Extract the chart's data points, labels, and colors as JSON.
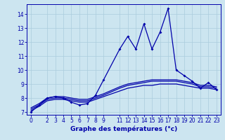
{
  "xlabel": "Graphe des températures (°c)",
  "bg_color": "#cce5f0",
  "grid_color": "#aaccdd",
  "line_color": "#0000aa",
  "xlim": [
    -0.5,
    23.5
  ],
  "ylim": [
    6.8,
    14.7
  ],
  "xticks": [
    0,
    2,
    3,
    4,
    5,
    6,
    7,
    8,
    9,
    11,
    12,
    13,
    14,
    15,
    16,
    17,
    18,
    19,
    20,
    21,
    22,
    23
  ],
  "yticks": [
    7,
    8,
    9,
    10,
    11,
    12,
    13,
    14
  ],
  "lines": [
    {
      "x": [
        0,
        1,
        2,
        3,
        4,
        5,
        6,
        7,
        8,
        9,
        11,
        12,
        13,
        14,
        15,
        16,
        17,
        18,
        19,
        20,
        21,
        22,
        23
      ],
      "y": [
        7.0,
        7.5,
        8.0,
        8.1,
        8.0,
        7.7,
        7.5,
        7.6,
        8.2,
        9.3,
        11.5,
        12.4,
        11.5,
        13.3,
        11.5,
        12.7,
        14.4,
        10.0,
        9.6,
        9.2,
        8.7,
        9.1,
        8.6
      ],
      "marker": true
    },
    {
      "x": [
        0,
        1,
        2,
        3,
        4,
        5,
        6,
        7,
        8,
        9,
        11,
        12,
        13,
        14,
        15,
        16,
        17,
        18,
        19,
        20,
        21,
        22,
        23
      ],
      "y": [
        7.1,
        7.4,
        7.8,
        7.9,
        7.9,
        7.8,
        7.7,
        7.7,
        7.9,
        8.1,
        8.5,
        8.7,
        8.8,
        8.9,
        8.9,
        9.0,
        9.0,
        9.0,
        8.9,
        8.8,
        8.7,
        8.7,
        8.6
      ],
      "marker": false
    },
    {
      "x": [
        0,
        1,
        2,
        3,
        4,
        5,
        6,
        7,
        8,
        9,
        11,
        12,
        13,
        14,
        15,
        16,
        17,
        18,
        19,
        20,
        21,
        22,
        23
      ],
      "y": [
        7.2,
        7.5,
        7.9,
        8.0,
        8.0,
        7.9,
        7.8,
        7.8,
        8.0,
        8.2,
        8.7,
        8.9,
        9.0,
        9.1,
        9.2,
        9.2,
        9.2,
        9.2,
        9.1,
        9.0,
        8.8,
        8.8,
        8.7
      ],
      "marker": false
    },
    {
      "x": [
        0,
        1,
        2,
        3,
        4,
        5,
        6,
        7,
        8,
        9,
        11,
        12,
        13,
        14,
        15,
        16,
        17,
        18,
        19,
        20,
        21,
        22,
        23
      ],
      "y": [
        7.3,
        7.6,
        8.0,
        8.1,
        8.1,
        8.0,
        7.9,
        7.9,
        8.1,
        8.3,
        8.8,
        9.0,
        9.1,
        9.2,
        9.3,
        9.3,
        9.3,
        9.3,
        9.2,
        9.1,
        8.9,
        8.9,
        8.8
      ],
      "marker": false
    }
  ]
}
